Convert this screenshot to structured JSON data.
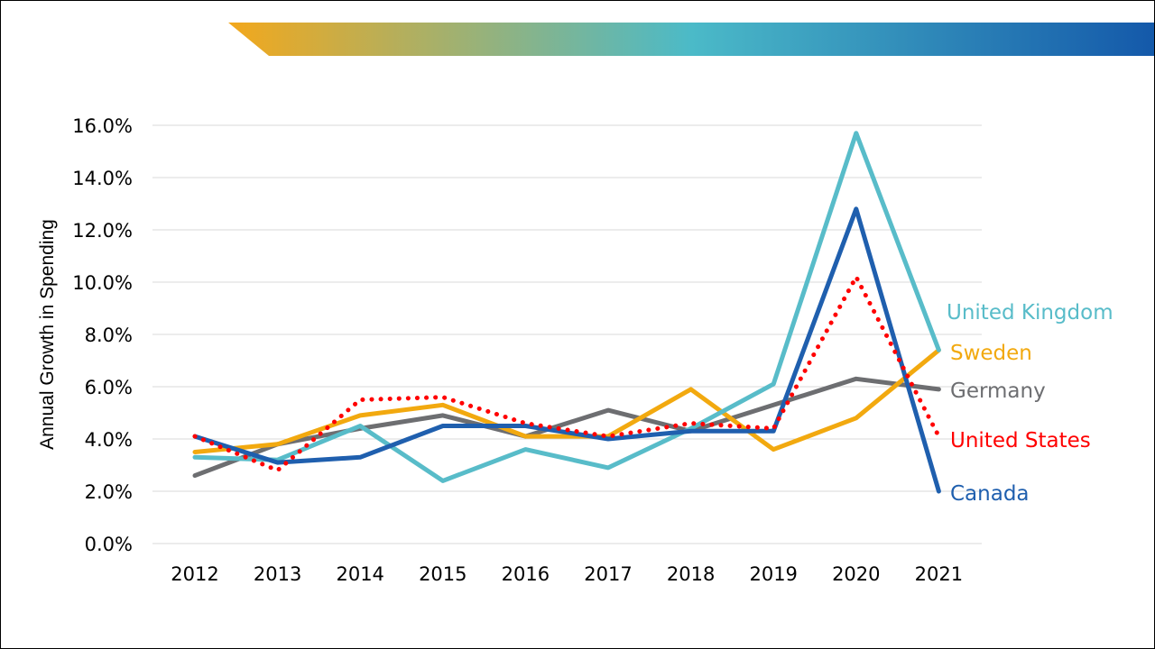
{
  "colors": {
    "banner_gradient": [
      "#f3a81c",
      "#4bbac8",
      "#1459aa"
    ],
    "gridline": "#d9d9d9",
    "united_kingdom": "#58bcc9",
    "sweden": "#f2a90f",
    "germany": "#6d6e71",
    "united_states": "#ff0000",
    "canada": "#1f5fae"
  },
  "chart_data": {
    "type": "line",
    "title": "",
    "xlabel": "",
    "ylabel": "Annual Growth in Spending",
    "categories": [
      "2012",
      "2013",
      "2014",
      "2015",
      "2016",
      "2017",
      "2018",
      "2019",
      "2020",
      "2021"
    ],
    "ylim": [
      0,
      16
    ],
    "yticks": [
      0,
      2,
      4,
      6,
      8,
      10,
      12,
      14,
      16
    ],
    "ytick_labels": [
      "0.0%",
      "2.0%",
      "4.0%",
      "6.0%",
      "8.0%",
      "10.0%",
      "12.0%",
      "14.0%",
      "16.0%"
    ],
    "grid": true,
    "legend": "inline-right",
    "series": [
      {
        "name": "United Kingdom",
        "key": "united_kingdom",
        "color": "#58bcc9",
        "dash": "solid",
        "values": [
          3.3,
          3.2,
          4.5,
          2.4,
          3.6,
          2.9,
          4.4,
          6.1,
          15.7,
          7.4
        ]
      },
      {
        "name": "Sweden",
        "key": "sweden",
        "color": "#f2a90f",
        "dash": "solid",
        "values": [
          3.5,
          3.8,
          4.9,
          5.3,
          4.1,
          4.1,
          5.9,
          3.6,
          4.8,
          7.4
        ]
      },
      {
        "name": "Germany",
        "key": "germany",
        "color": "#6d6e71",
        "dash": "solid",
        "values": [
          2.6,
          3.8,
          4.4,
          4.9,
          4.1,
          5.1,
          4.3,
          5.3,
          6.3,
          5.9
        ]
      },
      {
        "name": "United States",
        "key": "united_states",
        "color": "#ff0000",
        "dash": "dotted",
        "values": [
          4.1,
          2.8,
          5.5,
          5.6,
          4.6,
          4.1,
          4.6,
          4.4,
          10.2,
          4.1
        ]
      },
      {
        "name": "Canada",
        "key": "canada",
        "color": "#1f5fae",
        "dash": "solid",
        "values": [
          4.1,
          3.1,
          3.3,
          4.5,
          4.5,
          4.0,
          4.3,
          4.3,
          12.8,
          2.0
        ]
      }
    ]
  }
}
